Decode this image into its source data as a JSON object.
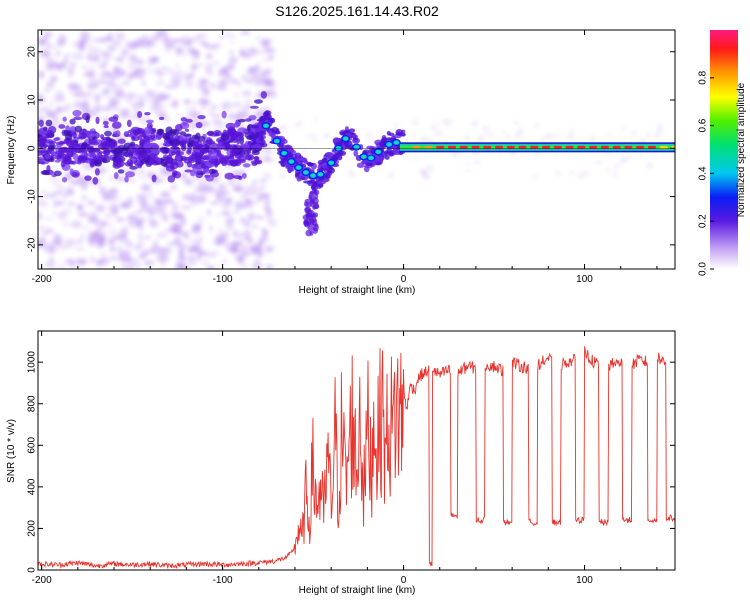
{
  "title": "S126.2025.161.14.43.R02",
  "chart_data": [
    {
      "type": "heatmap",
      "title": "S126.2025.161.14.43.R02",
      "xlabel": "Height of straight line (km)",
      "ylabel": "Frequency (Hz)",
      "xlim": [
        -202,
        150
      ],
      "ylim": [
        -25,
        24.5
      ],
      "xticks": [
        -200,
        -100,
        0,
        100
      ],
      "xtick_labels": [
        "-200",
        "-100",
        "0",
        "100"
      ],
      "yticks": [
        -20,
        -10,
        0,
        10,
        20
      ],
      "ytick_labels": [
        "-20",
        "-10",
        "0",
        "10",
        "20"
      ],
      "ridge": {
        "x": [
          -202,
          -180,
          -160,
          -140,
          -120,
          -100,
          -90,
          -82,
          -78,
          -75,
          -72,
          -68,
          -64,
          -60,
          -56,
          -52,
          -48,
          -44,
          -40,
          -36,
          -32,
          -28,
          -24,
          -20,
          -16,
          -12,
          -8,
          -4,
          0,
          10,
          30,
          60,
          100,
          150
        ],
        "y": [
          0,
          0.5,
          -0.5,
          0.5,
          -0.3,
          0,
          0.5,
          2,
          4,
          5,
          3,
          0,
          -2,
          -3.5,
          -4.5,
          -5.5,
          -5.8,
          -5,
          -3,
          0,
          2,
          1.5,
          -1,
          -2.5,
          -1.5,
          0,
          0.8,
          1.2,
          1,
          0.5,
          0.3,
          0.2,
          0.2,
          0.2
        ]
      },
      "colorbar": {
        "label": "Normalized spectral amplitude",
        "range": [
          0,
          1
        ],
        "ticks": [
          0.0,
          0.2,
          0.4,
          0.6,
          0.8
        ],
        "tick_labels": [
          "0.0",
          "0.2",
          "0.4",
          "0.6",
          "0.8"
        ]
      }
    },
    {
      "type": "line",
      "xlabel": "Height of straight line (km)",
      "ylabel": "SNR (10 * v/v)",
      "xlim": [
        -202,
        150
      ],
      "ylim": [
        0,
        1150
      ],
      "xticks": [
        -200,
        -100,
        0,
        100
      ],
      "xtick_labels": [
        "-200",
        "-100",
        "0",
        "100"
      ],
      "yticks": [
        0,
        200,
        400,
        600,
        800,
        1000
      ],
      "ytick_labels": [
        "0",
        "200",
        "400",
        "600",
        "800",
        "1000"
      ],
      "color": "#e8332c",
      "series": [
        {
          "name": "SNR",
          "x": [
            -202,
            -190,
            -180,
            -170,
            -160,
            -150,
            -140,
            -130,
            -120,
            -110,
            -100,
            -90,
            -80,
            -75,
            -70,
            -65,
            -62,
            -60,
            -58,
            -56,
            -54,
            -52,
            -50,
            -48,
            -46,
            -44,
            -42,
            -40,
            -38,
            -36,
            -34,
            -32,
            -30,
            -28,
            -26,
            -24,
            -22,
            -20,
            -18,
            -16,
            -14,
            -12,
            -10,
            -8,
            -6,
            -4,
            -2,
            0,
            2,
            4,
            6,
            8,
            10,
            12,
            14,
            16,
            18,
            20,
            25,
            30,
            35,
            40,
            45,
            50,
            55,
            60,
            65,
            70,
            75,
            80,
            85,
            90,
            95,
            100,
            105,
            110,
            115,
            120,
            125,
            130,
            135,
            140,
            145,
            150
          ],
          "y": [
            30,
            25,
            35,
            20,
            30,
            25,
            30,
            20,
            25,
            30,
            25,
            30,
            35,
            40,
            45,
            60,
            80,
            120,
            200,
            150,
            350,
            250,
            500,
            300,
            400,
            250,
            550,
            300,
            650,
            350,
            700,
            400,
            600,
            750,
            450,
            800,
            350,
            700,
            500,
            750,
            600,
            800,
            550,
            750,
            650,
            820,
            700,
            850,
            780,
            900,
            860,
            920,
            940,
            950,
            960,
            970,
            950,
            940,
            960,
            950,
            980,
            970,
            990,
            980,
            960,
            1000,
            980,
            970,
            990,
            1020,
            980,
            1000,
            1010,
            1050,
            1000,
            980,
            990,
            1000,
            980,
            1010,
            1000,
            1030,
            990,
            1000
          ]
        }
      ],
      "dropouts": [
        {
          "x0": 14,
          "x1": 16,
          "level": 30
        },
        {
          "x0": 26,
          "x1": 30,
          "level": 260
        },
        {
          "x0": 40,
          "x1": 45,
          "level": 240
        },
        {
          "x0": 55,
          "x1": 60,
          "level": 230
        },
        {
          "x0": 69,
          "x1": 74,
          "level": 230
        },
        {
          "x0": 82,
          "x1": 87,
          "level": 230
        },
        {
          "x0": 95,
          "x1": 100,
          "level": 240
        },
        {
          "x0": 108,
          "x1": 113,
          "level": 230
        },
        {
          "x0": 121,
          "x1": 126,
          "level": 240
        },
        {
          "x0": 135,
          "x1": 140,
          "level": 240
        },
        {
          "x0": 145,
          "x1": 150,
          "level": 250
        }
      ]
    }
  ]
}
